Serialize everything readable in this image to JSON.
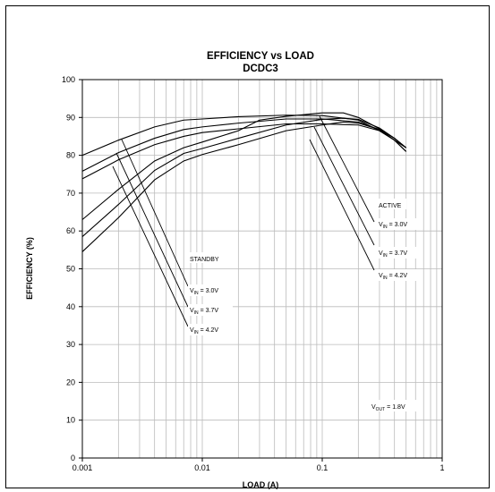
{
  "chart_data": {
    "type": "line",
    "title": "EFFICIENCY vs LOAD",
    "subtitle": "DCDC3",
    "xlabel": "LOAD (A)",
    "ylabel": "EFFICIENCY (%)",
    "xscale": "log",
    "xlim": [
      0.001,
      1
    ],
    "ylim": [
      0,
      100
    ],
    "x_ticks": [
      0.001,
      0.01,
      0.1,
      1
    ],
    "x_tick_labels": [
      "0.001",
      "0.01",
      "0.1",
      "1"
    ],
    "y_ticks": [
      0,
      10,
      20,
      30,
      40,
      50,
      60,
      70,
      80,
      90,
      100
    ],
    "y_tick_labels": [
      "0",
      "10",
      "20",
      "30",
      "40",
      "50",
      "60",
      "70",
      "80",
      "90",
      "100"
    ],
    "grid": true,
    "series": [
      {
        "mode": "standby",
        "vin": "3.0V",
        "color": "#000000",
        "points": [
          [
            0.001,
            80
          ],
          [
            0.002,
            84
          ],
          [
            0.004,
            87.5
          ],
          [
            0.007,
            89.3
          ],
          [
            0.01,
            89.6
          ],
          [
            0.02,
            90.2
          ],
          [
            0.05,
            90.6
          ],
          [
            0.1,
            90.5
          ],
          [
            0.2,
            89.3
          ],
          [
            0.3,
            86.5
          ],
          [
            0.4,
            84
          ],
          [
            0.5,
            82
          ]
        ]
      },
      {
        "mode": "standby",
        "vin": "3.7V",
        "color": "#000000",
        "points": [
          [
            0.001,
            75.8
          ],
          [
            0.002,
            80.7
          ],
          [
            0.004,
            84.5
          ],
          [
            0.007,
            86.8
          ],
          [
            0.01,
            87.5
          ],
          [
            0.02,
            88.5
          ],
          [
            0.05,
            89.6
          ],
          [
            0.1,
            89.6
          ],
          [
            0.2,
            88.8
          ],
          [
            0.3,
            86.8
          ],
          [
            0.4,
            84.5
          ],
          [
            0.5,
            82
          ]
        ]
      },
      {
        "mode": "standby",
        "vin": "4.2V",
        "color": "#000000",
        "points": [
          [
            0.001,
            73.8
          ],
          [
            0.002,
            78.8
          ],
          [
            0.004,
            82.8
          ],
          [
            0.007,
            85
          ],
          [
            0.01,
            86
          ],
          [
            0.02,
            87
          ],
          [
            0.05,
            88.3
          ],
          [
            0.1,
            88.3
          ],
          [
            0.2,
            88
          ],
          [
            0.3,
            86.5
          ],
          [
            0.4,
            84
          ],
          [
            0.5,
            81
          ]
        ]
      },
      {
        "mode": "active",
        "vin": "3.0V",
        "color": "#000000",
        "points": [
          [
            0.001,
            63
          ],
          [
            0.002,
            71
          ],
          [
            0.004,
            78.5
          ],
          [
            0.007,
            82
          ],
          [
            0.01,
            83.5
          ],
          [
            0.02,
            86.5
          ],
          [
            0.03,
            89.3
          ],
          [
            0.05,
            90.3
          ],
          [
            0.1,
            91.2
          ],
          [
            0.15,
            91.2
          ],
          [
            0.2,
            90
          ],
          [
            0.3,
            87
          ],
          [
            0.4,
            84.5
          ],
          [
            0.5,
            82
          ]
        ]
      },
      {
        "mode": "active",
        "vin": "3.7V",
        "color": "#000000",
        "points": [
          [
            0.001,
            58.5
          ],
          [
            0.002,
            67
          ],
          [
            0.004,
            76
          ],
          [
            0.007,
            80.5
          ],
          [
            0.01,
            81.8
          ],
          [
            0.02,
            84.5
          ],
          [
            0.05,
            88
          ],
          [
            0.1,
            89.5
          ],
          [
            0.15,
            89.8
          ],
          [
            0.2,
            89.5
          ],
          [
            0.3,
            87.2
          ],
          [
            0.4,
            84.5
          ],
          [
            0.5,
            82
          ]
        ]
      },
      {
        "mode": "active",
        "vin": "4.2V",
        "color": "#000000",
        "points": [
          [
            0.001,
            54.5
          ],
          [
            0.002,
            63.5
          ],
          [
            0.004,
            73.5
          ],
          [
            0.007,
            78.5
          ],
          [
            0.01,
            80.2
          ],
          [
            0.02,
            82.8
          ],
          [
            0.05,
            86.5
          ],
          [
            0.1,
            88
          ],
          [
            0.15,
            88.8
          ],
          [
            0.2,
            88.5
          ],
          [
            0.3,
            86.8
          ],
          [
            0.4,
            84
          ],
          [
            0.5,
            81
          ]
        ]
      }
    ],
    "annotations": {
      "standby": {
        "label": "STANDBY",
        "vin_labels": [
          {
            "prefix": "V",
            "sub": "IN",
            "value": " = 3.0V"
          },
          {
            "prefix": "V",
            "sub": "IN",
            "value": " = 3.7V"
          },
          {
            "prefix": "V",
            "sub": "IN",
            "value": " = 4.2V"
          }
        ]
      },
      "active": {
        "label": "ACTIVE",
        "vin_labels": [
          {
            "prefix": "V",
            "sub": "IN",
            "value": " = 3.0V"
          },
          {
            "prefix": "V",
            "sub": "IN",
            "value": " = 3.7V"
          },
          {
            "prefix": "V",
            "sub": "IN",
            "value": " = 4.2V"
          }
        ]
      },
      "vout": {
        "prefix": "V",
        "sub": "OUT",
        "value": " = 1.8V"
      }
    }
  }
}
